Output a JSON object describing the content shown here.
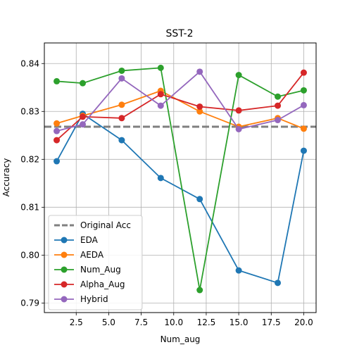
{
  "chart_data": {
    "type": "line",
    "title": "SST-2",
    "xlabel": "Num_aug",
    "ylabel": "Accuracy",
    "xlim": [
      0.05,
      20.95
    ],
    "ylim": [
      0.788,
      0.8443
    ],
    "xticks": [
      2.5,
      5.0,
      7.5,
      10.0,
      12.5,
      15.0,
      17.5,
      20.0
    ],
    "xtick_labels": [
      "2.5",
      "5.0",
      "7.5",
      "10.0",
      "12.5",
      "15.0",
      "17.5",
      "20.0"
    ],
    "yticks": [
      0.79,
      0.8,
      0.81,
      0.82,
      0.83,
      0.84
    ],
    "ytick_labels": [
      "0.79",
      "0.80",
      "0.81",
      "0.82",
      "0.83",
      "0.84"
    ],
    "grid": true,
    "legend_position": "lower-left",
    "x": [
      1,
      3,
      6,
      9,
      12,
      15,
      18,
      20
    ],
    "reference": {
      "name": "Original Acc",
      "value": 0.8268,
      "color": "#808080",
      "style": "dashed"
    },
    "series": [
      {
        "name": "EDA",
        "color": "#1f77b4",
        "values": [
          0.8196,
          0.8295,
          0.824,
          0.8161,
          0.8117,
          0.7968,
          0.7942,
          0.8218
        ]
      },
      {
        "name": "AEDA",
        "color": "#ff7f0e",
        "values": [
          0.8275,
          0.8291,
          0.8314,
          0.8343,
          0.83,
          0.8268,
          0.8286,
          0.8264
        ]
      },
      {
        "name": "Num_Aug",
        "color": "#2ca02c",
        "values": [
          0.8363,
          0.8359,
          0.8385,
          0.8391,
          0.7927,
          0.8376,
          0.8331,
          0.8344
        ]
      },
      {
        "name": "Alpha_Aug",
        "color": "#d62728",
        "values": [
          0.824,
          0.8289,
          0.8286,
          0.8336,
          0.831,
          0.8302,
          0.8312,
          0.8381
        ]
      },
      {
        "name": "Hybrid",
        "color": "#9467bd",
        "values": [
          0.8259,
          0.8273,
          0.8369,
          0.8312,
          0.8383,
          0.8263,
          0.8282,
          0.8313
        ]
      }
    ]
  }
}
